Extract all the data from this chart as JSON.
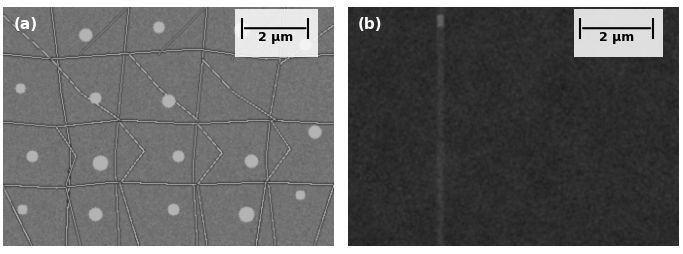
{
  "figsize": [
    6.83,
    2.55
  ],
  "dpi": 100,
  "panel_a_label": "(a)",
  "panel_b_label": "(b)",
  "scale_bar_text": "2 μm",
  "panel_a_bg_mean": 120,
  "panel_b_bg_mean": 45,
  "label_fontsize": 11,
  "scalebar_fontsize": 9,
  "border_color": "#000000",
  "label_color": "#ffffff",
  "scalebar_text_color": "#000000",
  "scalebar_box_color": "#ffffff",
  "panel_a_seed": 42,
  "panel_b_seed": 7
}
